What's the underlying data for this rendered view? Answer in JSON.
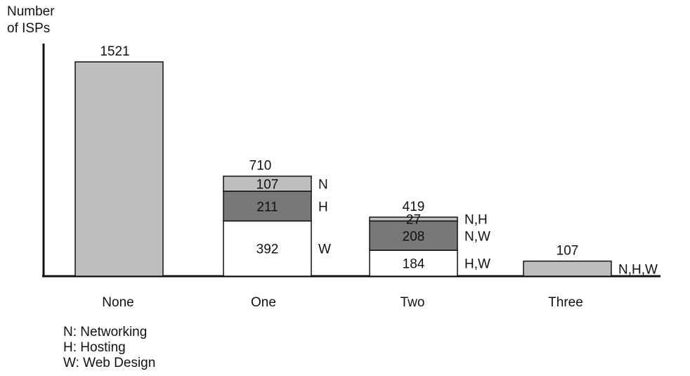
{
  "chart_data": {
    "type": "bar",
    "ylabel": "Number\nof ISPs",
    "categories": [
      "None",
      "One",
      "Two",
      "Three"
    ],
    "totals": [
      1521,
      710,
      419,
      107
    ],
    "stacks": [
      [
        {
          "value": 1521,
          "label": "",
          "shade": "#bebebe"
        }
      ],
      [
        {
          "value": 392,
          "label": "W",
          "shade": "#ffffff"
        },
        {
          "value": 211,
          "label": "H",
          "shade": "#787878"
        },
        {
          "value": 107,
          "label": "N",
          "shade": "#bebebe"
        }
      ],
      [
        {
          "value": 184,
          "label": "H,W",
          "shade": "#ffffff"
        },
        {
          "value": 208,
          "label": "N,W",
          "shade": "#787878"
        },
        {
          "value": 27,
          "label": "N,H",
          "shade": "#bebebe"
        }
      ],
      [
        {
          "value": 107,
          "label": "N,H,W",
          "shade": "#bebebe"
        }
      ]
    ],
    "legend": [
      "N: Networking",
      "H: Hosting",
      "W: Web Design"
    ]
  }
}
